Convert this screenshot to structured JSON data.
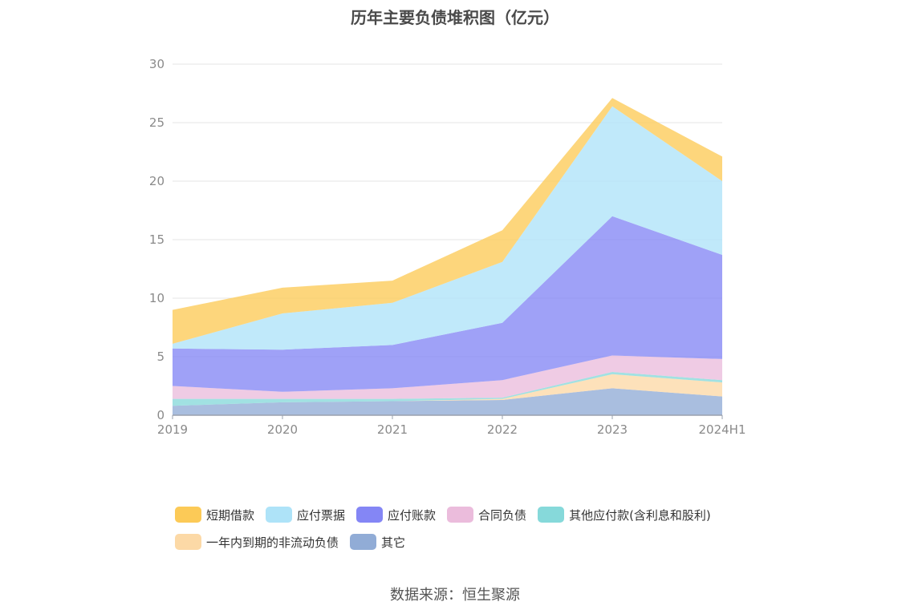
{
  "title": "历年主要负债堆积图（亿元）",
  "source": "数据来源：恒生聚源",
  "chart_data": {
    "type": "area",
    "stacked": true,
    "x": [
      "2019",
      "2020",
      "2021",
      "2022",
      "2023",
      "2024H1"
    ],
    "ylim": [
      0,
      30
    ],
    "yticks": [
      0,
      5,
      10,
      15,
      20,
      25,
      30
    ],
    "grid": true,
    "legend_position": "bottom",
    "series": [
      {
        "name": "其它",
        "color": "#91acd6",
        "values": [
          0.8,
          1.1,
          1.2,
          1.3,
          2.3,
          1.6
        ]
      },
      {
        "name": "一年内到期的非流动负债",
        "color": "#fcd9a6",
        "values": [
          0.0,
          0.0,
          0.0,
          0.1,
          1.2,
          1.2
        ]
      },
      {
        "name": "其他应付款(含利息和股利)",
        "color": "#86d9da",
        "values": [
          0.6,
          0.3,
          0.2,
          0.1,
          0.2,
          0.2
        ]
      },
      {
        "name": "合同负债",
        "color": "#ebbcdc",
        "values": [
          1.1,
          0.6,
          0.9,
          1.5,
          1.4,
          1.8
        ]
      },
      {
        "name": "应付账款",
        "color": "#8486f5",
        "values": [
          3.2,
          3.6,
          3.7,
          4.9,
          11.9,
          8.9
        ]
      },
      {
        "name": "应付票据",
        "color": "#aee3f8",
        "values": [
          0.4,
          3.1,
          3.6,
          5.2,
          9.4,
          6.3
        ]
      },
      {
        "name": "短期借款",
        "color": "#fcca57",
        "values": [
          2.9,
          2.2,
          1.9,
          2.7,
          0.7,
          2.1
        ]
      }
    ],
    "legend_order": [
      "短期借款",
      "应付票据",
      "应付账款",
      "合同负债",
      "其他应付款(含利息和股利)",
      "一年内到期的非流动负债",
      "其它"
    ]
  }
}
